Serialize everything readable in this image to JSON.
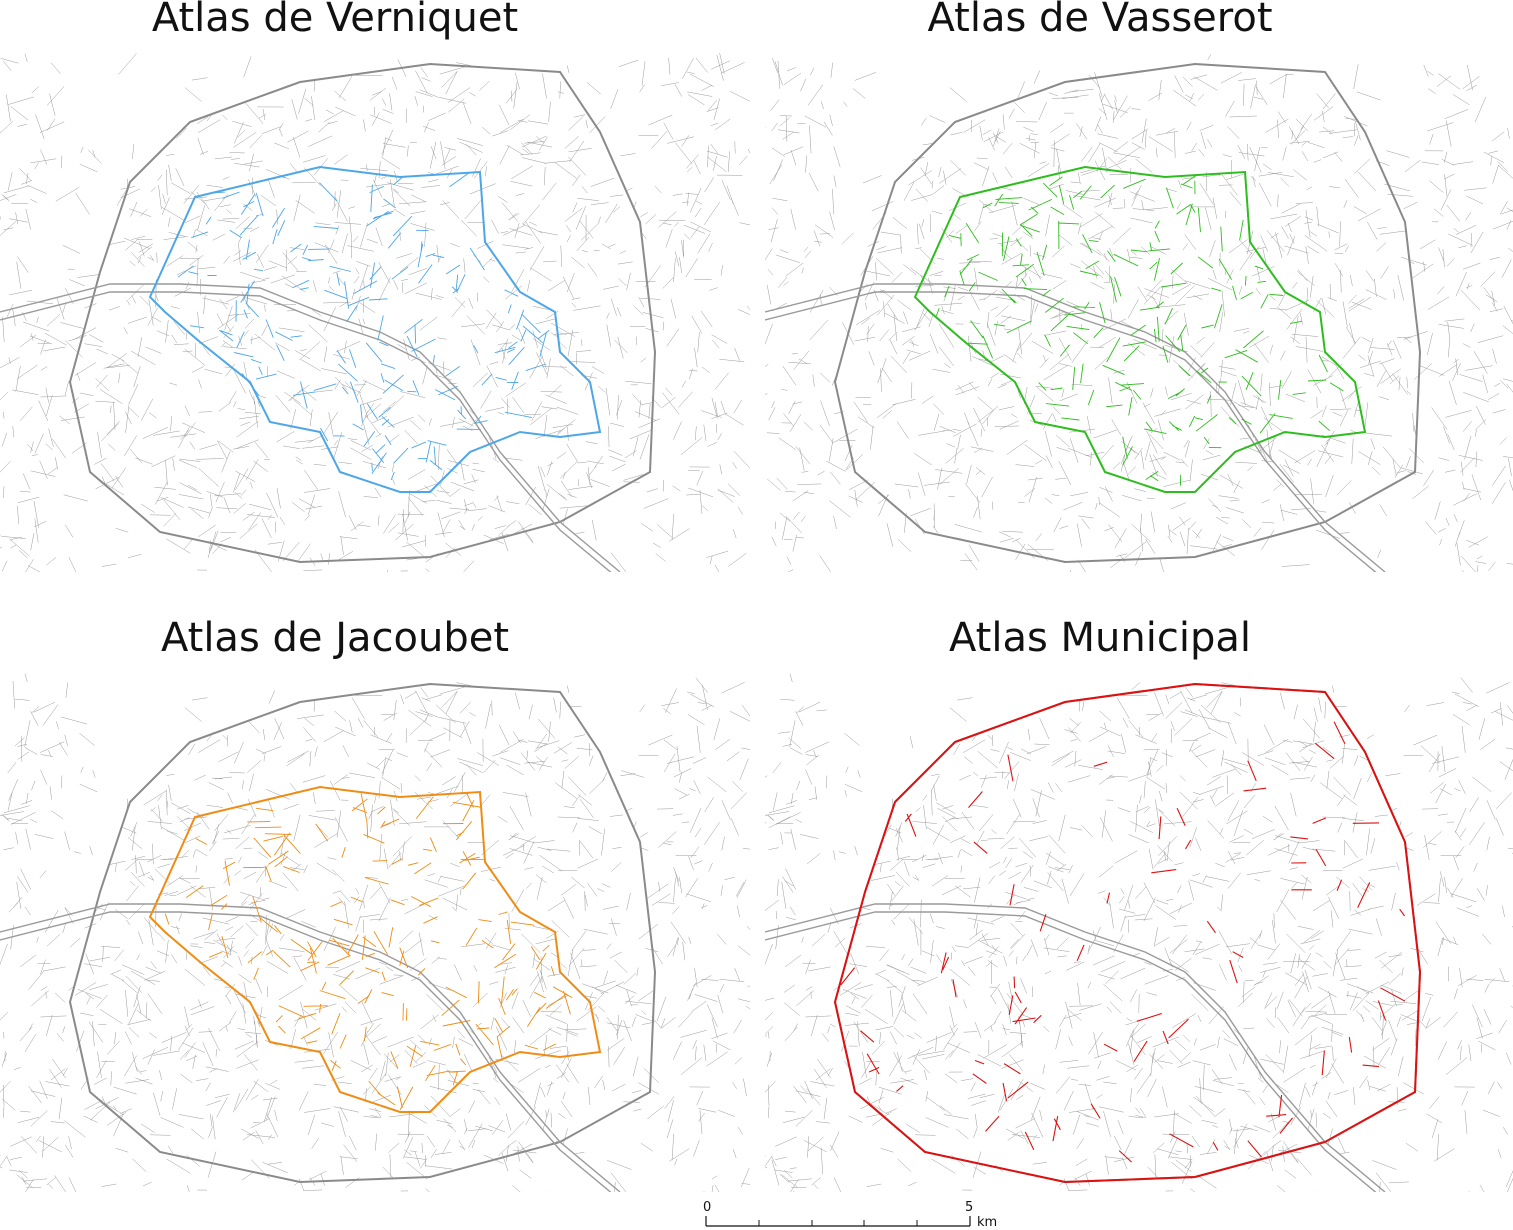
{
  "panels": [
    {
      "title": "Atlas de Verniquet",
      "color": "#4da6e8"
    },
    {
      "title": "Atlas de Vasserot",
      "color": "#2ebd1e"
    },
    {
      "title": "Atlas de Jacoubet",
      "color": "#f08c14"
    },
    {
      "title": "Atlas Municipal",
      "color": "#e01010"
    }
  ],
  "basemap_color": "#9a9a9a",
  "scalebar": {
    "start_label": "0",
    "end_label": "5",
    "unit": "km"
  }
}
